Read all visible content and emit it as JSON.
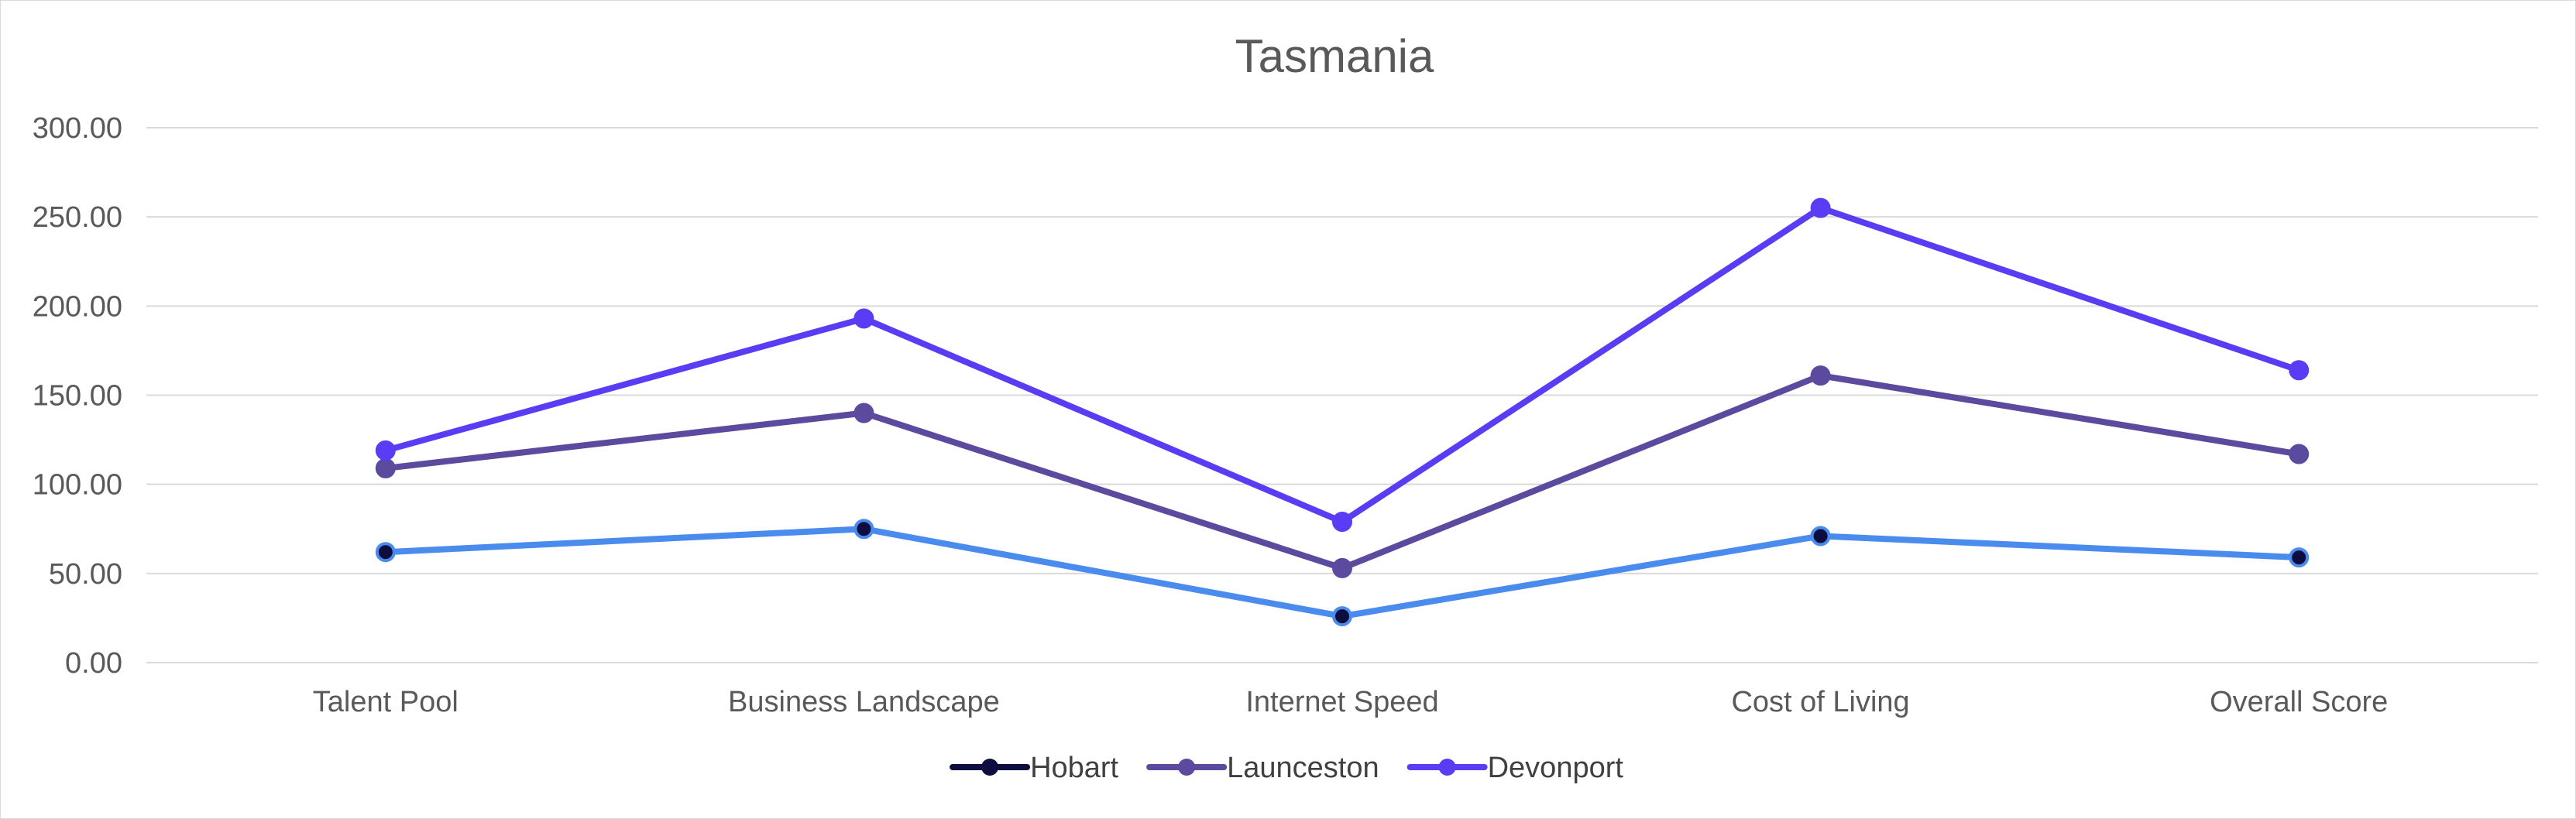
{
  "chart_data": {
    "type": "line",
    "title": "Tasmania",
    "categories": [
      "Talent Pool",
      "Business Landscape",
      "Internet Speed",
      "Cost of Living",
      "Overall Score"
    ],
    "ylim": [
      0,
      300
    ],
    "yticks": [
      "0.00",
      "50.00",
      "100.00",
      "150.00",
      "200.00",
      "250.00",
      "300.00"
    ],
    "grid": true,
    "legend_position": "bottom",
    "series": [
      {
        "name": "Hobart",
        "values": [
          62,
          75,
          26,
          71,
          59
        ],
        "line_color": "#4a8ced",
        "marker_color": "#0d0d3f",
        "legend_color": "#0d0d3f"
      },
      {
        "name": "Launceston",
        "values": [
          109,
          140,
          53,
          161,
          117
        ],
        "line_color": "#5b4a9e",
        "marker_color": "#5b4a9e",
        "legend_color": "#5b4a9e"
      },
      {
        "name": "Devonport",
        "values": [
          119,
          193,
          79,
          255,
          164
        ],
        "line_color": "#5b3cf5",
        "marker_color": "#5b3cf5",
        "legend_color": "#5b3cf5"
      }
    ]
  }
}
